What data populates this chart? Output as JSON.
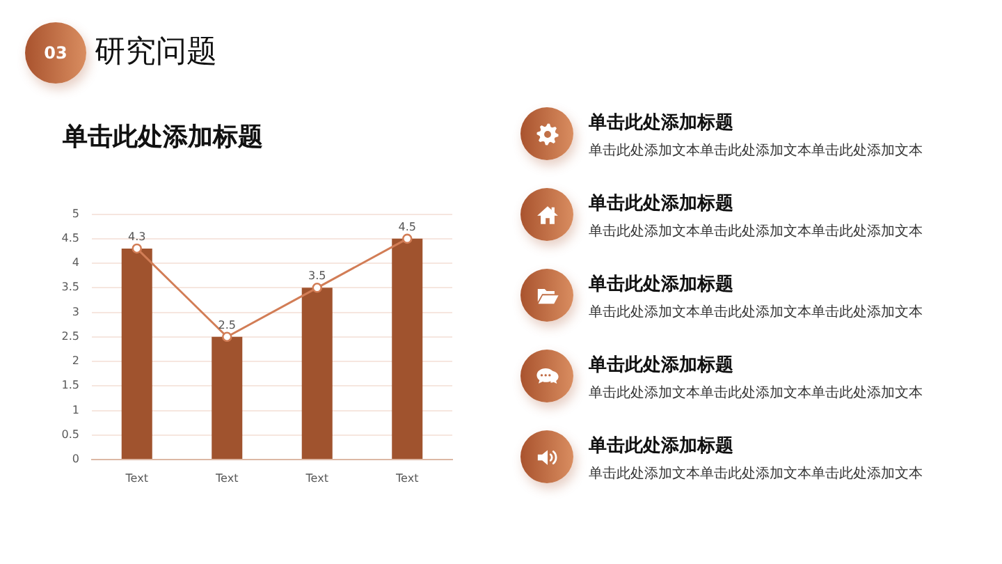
{
  "chart_data": [
    {
      "type": "bar",
      "title": "研究问题",
      "subtitle": "单击此处添加标题",
      "annotations": [
        "03"
      ],
      "categories": [
        "Text",
        "Text",
        "Text",
        "Text"
      ],
      "series": [
        {
          "type": "bar",
          "color": "#a0532e",
          "values": [
            4.3,
            2.5,
            3.5,
            4.5
          ]
        },
        {
          "type": "line",
          "color": "#d27d56",
          "values": [
            4.3,
            2.5,
            3.5,
            4.5
          ],
          "value_labels": [
            "4.3",
            "2.5",
            "3.5",
            "4.5"
          ]
        }
      ],
      "ylim": [
        0,
        5
      ],
      "yticks": [
        0,
        0.5,
        1,
        1.5,
        2,
        2.5,
        3,
        3.5,
        4,
        4.5,
        5
      ],
      "grid": "y",
      "marker": "circle"
    },
    {
      "type": "other",
      "annotations": [
        "单击此处添加标题",
        "单击此处添加文本单击此处添加文本单击此处添加文本",
        "单击此处添加标题",
        "单击此处添加文本单击此处添加文本单击此处添加文本",
        "单击此处添加标题",
        "单击此处添加文本单击此处添加文本单击此处添加文本",
        "单击此处添加标题",
        "单击此处添加文本单击此处添加文本单击此处添加文本",
        "单击此处添加标题",
        "单击此处添加文本单击此处添加文本单击此处添加文本"
      ]
    }
  ]
}
